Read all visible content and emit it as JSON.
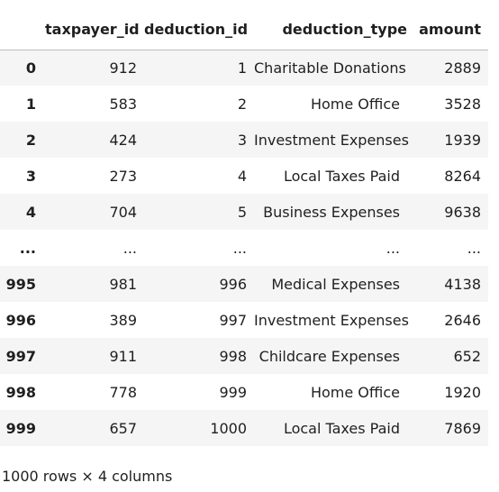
{
  "columns": {
    "index": "",
    "taxpayer_id": "taxpayer_id",
    "deduction_id": "deduction_id",
    "deduction_type": "deduction_type",
    "amount": "amount"
  },
  "rows": [
    {
      "index": "0",
      "taxpayer_id": "912",
      "deduction_id": "1",
      "deduction_type": "Charitable Donations",
      "amount": "2889"
    },
    {
      "index": "1",
      "taxpayer_id": "583",
      "deduction_id": "2",
      "deduction_type": "Home Office",
      "amount": "3528"
    },
    {
      "index": "2",
      "taxpayer_id": "424",
      "deduction_id": "3",
      "deduction_type": "Investment Expenses",
      "amount": "1939"
    },
    {
      "index": "3",
      "taxpayer_id": "273",
      "deduction_id": "4",
      "deduction_type": "Local Taxes Paid",
      "amount": "8264"
    },
    {
      "index": "4",
      "taxpayer_id": "704",
      "deduction_id": "5",
      "deduction_type": "Business Expenses",
      "amount": "9638"
    },
    {
      "index": "...",
      "taxpayer_id": "...",
      "deduction_id": "...",
      "deduction_type": "...",
      "amount": "..."
    },
    {
      "index": "995",
      "taxpayer_id": "981",
      "deduction_id": "996",
      "deduction_type": "Medical Expenses",
      "amount": "4138"
    },
    {
      "index": "996",
      "taxpayer_id": "389",
      "deduction_id": "997",
      "deduction_type": "Investment Expenses",
      "amount": "2646"
    },
    {
      "index": "997",
      "taxpayer_id": "911",
      "deduction_id": "998",
      "deduction_type": "Childcare Expenses",
      "amount": "652"
    },
    {
      "index": "998",
      "taxpayer_id": "778",
      "deduction_id": "999",
      "deduction_type": "Home Office",
      "amount": "1920"
    },
    {
      "index": "999",
      "taxpayer_id": "657",
      "deduction_id": "1000",
      "deduction_type": "Local Taxes Paid",
      "amount": "7869"
    }
  ],
  "summary": "1000 rows × 4 columns"
}
